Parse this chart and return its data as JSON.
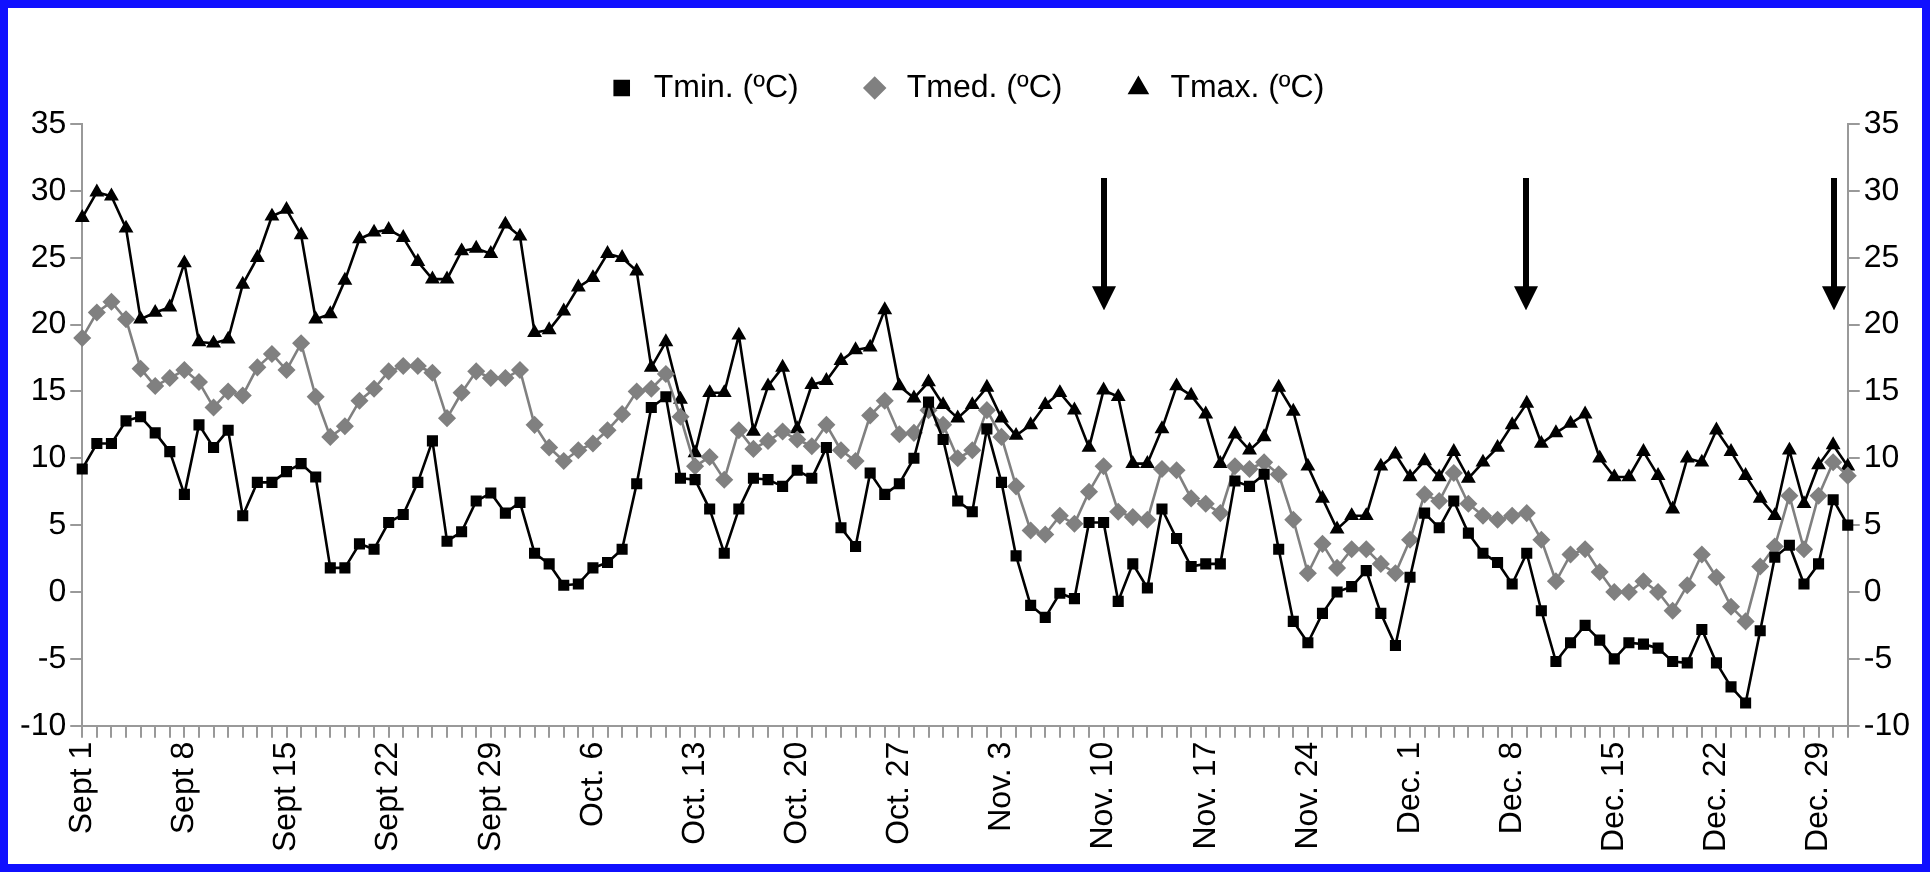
{
  "chart_data": {
    "type": "line",
    "categories": [
      "Sept 1",
      null,
      null,
      null,
      null,
      null,
      null,
      "Sept 8",
      null,
      null,
      null,
      null,
      null,
      null,
      "Sept 15",
      null,
      null,
      null,
      null,
      null,
      null,
      "Sept 22",
      null,
      null,
      null,
      null,
      null,
      null,
      "Sept 29",
      null,
      null,
      null,
      null,
      null,
      null,
      "Oct. 6",
      null,
      null,
      null,
      null,
      null,
      null,
      "Oct. 13",
      null,
      null,
      null,
      null,
      null,
      null,
      "Oct. 20",
      null,
      null,
      null,
      null,
      null,
      null,
      "Oct. 27",
      null,
      null,
      null,
      null,
      null,
      null,
      "Nov. 3",
      null,
      null,
      null,
      null,
      null,
      null,
      "Nov. 10",
      null,
      null,
      null,
      null,
      null,
      null,
      "Nov. 17",
      null,
      null,
      null,
      null,
      null,
      null,
      "Nov. 24",
      null,
      null,
      null,
      null,
      null,
      null,
      "Dec. 1",
      null,
      null,
      null,
      null,
      null,
      null,
      "Dec. 8",
      null,
      null,
      null,
      null,
      null,
      null,
      "Dec. 15",
      null,
      null,
      null,
      null,
      null,
      null,
      "Dec. 22",
      null,
      null,
      null,
      null,
      null,
      null,
      "Dec. 29",
      null,
      null
    ],
    "series": [
      {
        "name": "Tmin. (ºC)",
        "color": "#000000",
        "marker": "square",
        "values": [
          9.2,
          11.1,
          11.1,
          12.8,
          13.1,
          11.9,
          10.5,
          7.3,
          12.5,
          10.8,
          12.1,
          5.7,
          8.2,
          8.2,
          9.0,
          9.6,
          8.6,
          1.8,
          1.8,
          3.6,
          3.2,
          5.2,
          5.8,
          8.2,
          11.3,
          3.8,
          4.5,
          6.8,
          7.4,
          5.9,
          6.7,
          2.9,
          2.1,
          0.5,
          0.6,
          1.8,
          2.2,
          3.2,
          8.1,
          13.8,
          14.6,
          8.5,
          8.4,
          6.2,
          2.9,
          6.2,
          8.5,
          8.4,
          7.9,
          9.1,
          8.5,
          10.8,
          4.8,
          3.4,
          8.9,
          7.3,
          8.1,
          10.0,
          14.2,
          11.4,
          6.8,
          6.0,
          12.2,
          8.2,
          2.7,
          -1.0,
          -1.9,
          -0.1,
          -0.5,
          5.2,
          5.2,
          -0.7,
          2.1,
          0.3,
          6.2,
          4.0,
          1.9,
          2.1,
          2.1,
          8.3,
          7.9,
          8.8,
          3.2,
          -2.2,
          -3.8,
          -1.6,
          0.0,
          0.4,
          1.6,
          -1.6,
          -4.0,
          1.1,
          5.9,
          4.8,
          6.8,
          4.4,
          2.9,
          2.2,
          0.6,
          2.9,
          -1.4,
          -5.2,
          -3.8,
          -2.5,
          -3.6,
          -5.0,
          -3.8,
          -3.9,
          -4.2,
          -5.2,
          -5.3,
          -2.8,
          -5.3,
          -7.1,
          -8.3,
          -2.9,
          2.6,
          3.5,
          0.6,
          2.1,
          6.9,
          5.0
        ]
      },
      {
        "name": "Tmed. (ºC)",
        "color": "#808080",
        "marker": "diamond",
        "values": [
          19.0,
          20.9,
          21.7,
          20.4,
          16.7,
          15.4,
          16.0,
          16.6,
          15.7,
          13.8,
          15.0,
          14.7,
          16.8,
          17.8,
          16.6,
          18.6,
          14.6,
          11.6,
          12.4,
          14.3,
          15.2,
          16.5,
          16.9,
          16.9,
          16.4,
          13.0,
          14.9,
          16.5,
          16.0,
          16.0,
          16.6,
          12.5,
          10.8,
          9.8,
          10.6,
          11.1,
          12.1,
          13.3,
          15.0,
          15.2,
          16.3,
          13.1,
          9.4,
          10.1,
          8.4,
          12.1,
          10.7,
          11.3,
          12.0,
          11.4,
          10.9,
          12.5,
          10.6,
          9.8,
          13.2,
          14.3,
          11.8,
          11.9,
          13.6,
          12.5,
          10.0,
          10.6,
          13.6,
          11.6,
          7.9,
          4.6,
          4.3,
          5.7,
          5.1,
          7.5,
          9.4,
          6.0,
          5.6,
          5.4,
          9.2,
          9.1,
          7.0,
          6.6,
          5.9,
          9.4,
          9.2,
          9.7,
          8.8,
          5.4,
          1.4,
          3.6,
          1.8,
          3.2,
          3.2,
          2.1,
          1.4,
          3.9,
          7.3,
          6.8,
          8.9,
          6.6,
          5.7,
          5.4,
          5.7,
          5.9,
          3.9,
          0.8,
          2.8,
          3.2,
          1.5,
          0.0,
          0.0,
          0.8,
          0.0,
          -1.4,
          0.5,
          2.8,
          1.1,
          -1.1,
          -2.2,
          1.9,
          3.4,
          7.2,
          3.2,
          7.2,
          9.7,
          8.7
        ]
      },
      {
        "name": "Tmax. (ºC)",
        "color": "#000000",
        "marker": "triangle",
        "values": [
          28.0,
          29.9,
          29.6,
          27.2,
          20.4,
          20.9,
          21.3,
          24.6,
          18.7,
          18.6,
          18.9,
          23.0,
          25.0,
          28.1,
          28.6,
          26.7,
          20.4,
          20.8,
          23.3,
          26.4,
          26.9,
          27.1,
          26.5,
          24.7,
          23.4,
          23.4,
          25.5,
          25.7,
          25.3,
          27.5,
          26.6,
          19.4,
          19.6,
          21.0,
          22.8,
          23.5,
          25.3,
          25.0,
          24.0,
          16.8,
          18.7,
          14.4,
          10.4,
          14.9,
          14.9,
          19.2,
          12.0,
          15.4,
          16.8,
          12.2,
          15.5,
          15.8,
          17.3,
          18.1,
          18.3,
          21.1,
          15.4,
          14.5,
          15.7,
          14.0,
          13.0,
          14.0,
          15.3,
          13.0,
          11.7,
          12.5,
          14.0,
          14.9,
          13.6,
          10.8,
          15.1,
          14.6,
          9.6,
          9.6,
          12.2,
          15.4,
          14.7,
          13.3,
          9.6,
          11.8,
          10.6,
          11.6,
          15.3,
          13.5,
          9.4,
          7.0,
          4.7,
          5.7,
          5.7,
          9.4,
          10.3,
          8.6,
          9.8,
          8.6,
          10.5,
          8.5,
          9.7,
          10.8,
          12.5,
          14.1,
          11.1,
          11.9,
          12.6,
          13.3,
          10.0,
          8.6,
          8.6,
          10.5,
          8.7,
          6.2,
          10.0,
          9.7,
          12.1,
          10.5,
          8.7,
          7.0,
          5.7,
          10.6,
          6.6,
          9.5,
          11.0,
          9.4
        ]
      }
    ],
    "ylim": [
      -10,
      35
    ],
    "yticks": [
      -10,
      -5,
      0,
      5,
      10,
      15,
      20,
      25,
      30,
      35
    ],
    "y2lim": [
      -10,
      35
    ],
    "y2ticks": [
      -10,
      -5,
      0,
      5,
      10,
      15,
      20,
      25,
      30,
      35
    ],
    "legend": "top",
    "grid": false,
    "line_style": "solid"
  }
}
